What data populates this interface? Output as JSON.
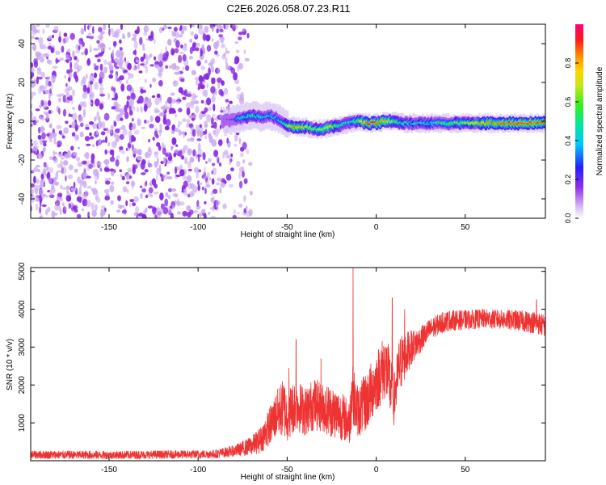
{
  "title": "C2E6.2026.058.07.23.R11",
  "colors": {
    "snr_line": "#ee3333",
    "noise_dots": "#8a2be2",
    "noise_dots_light": "#c9a8f0",
    "axis": "#000000"
  },
  "chart_data": [
    {
      "type": "heatmap",
      "title": "C2E6.2026.058.07.23.R11",
      "xlabel": "Height of straight line (km)",
      "ylabel": "Frequency (Hz)",
      "xlim": [
        -194,
        95
      ],
      "ylim": [
        -50,
        50
      ],
      "xticks": [
        -150,
        -100,
        -50,
        0,
        50
      ],
      "yticks": [
        -40,
        -20,
        0,
        20,
        40
      ],
      "noise_region_x": [
        -194,
        -70
      ],
      "signal_track": {
        "x": [
          -86,
          -80,
          -75,
          -70,
          -65,
          -60,
          -55,
          -50,
          -45,
          -40,
          -35,
          -30,
          -25,
          -20,
          -15,
          -10,
          -5,
          0,
          5,
          10,
          15,
          20,
          30,
          40,
          50,
          60,
          70,
          80,
          90,
          95
        ],
        "freq": [
          0,
          1,
          2,
          3,
          2,
          3,
          1,
          -2,
          -3,
          -3,
          -4,
          -4,
          -3,
          -2,
          -1,
          0,
          -1,
          -1,
          0,
          0,
          -1,
          -1,
          -1,
          -1,
          -1,
          -1,
          -1,
          -1,
          -1,
          -1
        ],
        "amplitude": [
          0.1,
          0.2,
          0.45,
          0.5,
          0.45,
          0.4,
          0.35,
          0.6,
          0.85,
          0.7,
          0.6,
          0.65,
          0.75,
          0.5,
          0.45,
          0.6,
          0.9,
          0.9,
          0.85,
          0.6,
          0.5,
          0.45,
          0.45,
          0.55,
          0.6,
          0.8,
          0.85,
          0.9,
          0.9,
          0.85
        ]
      },
      "colorbar": {
        "label": "Normalized spectral amplitude",
        "range": [
          0,
          1
        ],
        "ticks": [
          "0.0",
          "0.2",
          "0.4",
          "0.6",
          "0.8"
        ],
        "tick_values": [
          0,
          0.2,
          0.4,
          0.6,
          0.8
        ]
      }
    },
    {
      "type": "line",
      "xlabel": "Height of straight line (km)",
      "ylabel": "SNR (10 * v/v)",
      "xlim": [
        -194,
        95
      ],
      "ylim": [
        0,
        5100
      ],
      "xticks": [
        -150,
        -100,
        -50,
        0,
        50
      ],
      "yticks": [
        1000,
        2000,
        3000,
        4000,
        5000
      ],
      "series": [
        {
          "name": "SNR",
          "envelope": {
            "x": [
              -194,
              -150,
              -100,
              -90,
              -80,
              -75,
              -70,
              -65,
              -60,
              -55,
              -52,
              -50,
              -45,
              -40,
              -35,
              -30,
              -25,
              -20,
              -15,
              -14,
              -13,
              -12,
              -10,
              -5,
              0,
              5,
              8,
              10,
              13,
              15,
              20,
              25,
              30,
              35,
              40,
              50,
              60,
              70,
              80,
              90,
              95
            ],
            "mean": [
              160,
              150,
              170,
              180,
              260,
              320,
              400,
              550,
              900,
              1300,
              1400,
              1200,
              1500,
              1300,
              1500,
              1400,
              1300,
              1200,
              1000,
              1700,
              1900,
              1500,
              1300,
              1600,
              2100,
              2500,
              2000,
              1600,
              2500,
              2700,
              3000,
              3200,
              3450,
              3600,
              3700,
              3720,
              3750,
              3730,
              3700,
              3650,
              3550
            ],
            "spread": [
              110,
              110,
              110,
              120,
              150,
              200,
              250,
              350,
              500,
              650,
              800,
              700,
              700,
              650,
              700,
              650,
              700,
              650,
              600,
              900,
              900,
              700,
              700,
              800,
              800,
              900,
              900,
              700,
              800,
              700,
              450,
              350,
              300,
              280,
              280,
              260,
              260,
              260,
              280,
              300,
              300
            ]
          },
          "spikes": [
            {
              "x": -49,
              "y": 2450
            },
            {
              "x": -45,
              "y": 3200
            },
            {
              "x": -31,
              "y": 2700
            },
            {
              "x": -13,
              "y": 5100
            },
            {
              "x": 9,
              "y": 4300
            },
            {
              "x": 16,
              "y": 4000
            },
            {
              "x": 90,
              "y": 4250
            }
          ]
        }
      ]
    }
  ]
}
